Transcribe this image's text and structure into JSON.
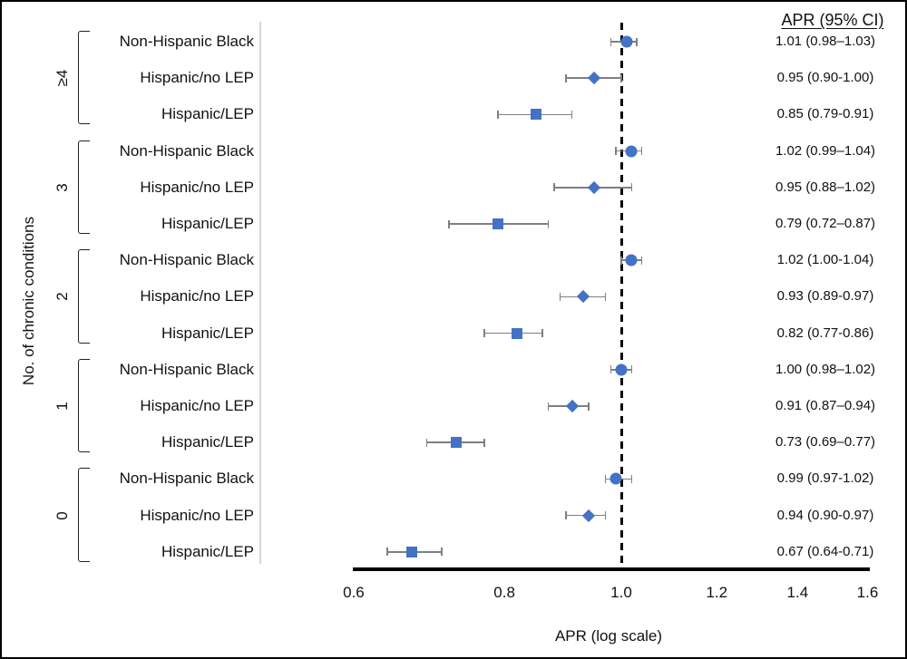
{
  "chart_data": {
    "type": "forest",
    "x_scale": "log",
    "xlabel": "APR (log scale)",
    "ylabel": "No. of chronic conditions",
    "value_column_header": "APR (95% CI)",
    "x_tick_labels": [
      "0.6",
      "0.8",
      "1.0",
      "1.2",
      "1.4",
      "1.6"
    ],
    "x_tick_values": [
      0.6,
      0.8,
      1.0,
      1.2,
      1.4,
      1.6
    ],
    "xlim": [
      0.6,
      1.6
    ],
    "reference_line": 1.0,
    "grid": false,
    "colors": {
      "marker": "#4472C4",
      "error_bar": "#7F7F7F",
      "separator_line": "#D6D6D6",
      "reference_line": "#000000"
    },
    "marker_legend": {
      "Non-Hispanic Black": "circle",
      "Hispanic/no LEP": "diamond",
      "Hispanic/LEP": "square"
    },
    "groups": [
      {
        "label": "≥4",
        "rows": [
          {
            "label": "Non-Hispanic Black",
            "marker": "circle",
            "apr": 1.01,
            "ci_low": 0.98,
            "ci_high": 1.03,
            "text": "1.01 (0.98–1.03)"
          },
          {
            "label": "Hispanic/no LEP",
            "marker": "diamond",
            "apr": 0.95,
            "ci_low": 0.9,
            "ci_high": 1.0,
            "text": "0.95 (0.90-1.00)"
          },
          {
            "label": "Hispanic/LEP",
            "marker": "square",
            "apr": 0.85,
            "ci_low": 0.79,
            "ci_high": 0.91,
            "text": "0.85 (0.79-0.91)"
          }
        ]
      },
      {
        "label": "3",
        "rows": [
          {
            "label": "Non-Hispanic Black",
            "marker": "circle",
            "apr": 1.02,
            "ci_low": 0.99,
            "ci_high": 1.04,
            "text": "1.02 (0.99–1.04)"
          },
          {
            "label": "Hispanic/no LEP",
            "marker": "diamond",
            "apr": 0.95,
            "ci_low": 0.88,
            "ci_high": 1.02,
            "text": "0.95 (0.88–1.02)"
          },
          {
            "label": "Hispanic/LEP",
            "marker": "square",
            "apr": 0.79,
            "ci_low": 0.72,
            "ci_high": 0.87,
            "text": "0.79 (0.72–0.87)"
          }
        ]
      },
      {
        "label": "2",
        "rows": [
          {
            "label": "Non-Hispanic Black",
            "marker": "circle",
            "apr": 1.02,
            "ci_low": 1.0,
            "ci_high": 1.04,
            "text": "1.02 (1.00-1.04)"
          },
          {
            "label": "Hispanic/no LEP",
            "marker": "diamond",
            "apr": 0.93,
            "ci_low": 0.89,
            "ci_high": 0.97,
            "text": "0.93 (0.89-0.97)"
          },
          {
            "label": "Hispanic/LEP",
            "marker": "square",
            "apr": 0.82,
            "ci_low": 0.77,
            "ci_high": 0.86,
            "text": "0.82 (0.77-0.86)"
          }
        ]
      },
      {
        "label": "1",
        "rows": [
          {
            "label": "Non-Hispanic Black",
            "marker": "circle",
            "apr": 1.0,
            "ci_low": 0.98,
            "ci_high": 1.02,
            "text": "1.00 (0.98–1.02)"
          },
          {
            "label": "Hispanic/no LEP",
            "marker": "diamond",
            "apr": 0.91,
            "ci_low": 0.87,
            "ci_high": 0.94,
            "text": "0.91 (0.87–0.94)"
          },
          {
            "label": "Hispanic/LEP",
            "marker": "square",
            "apr": 0.73,
            "ci_low": 0.69,
            "ci_high": 0.77,
            "text": "0.73 (0.69–0.77)"
          }
        ]
      },
      {
        "label": "0",
        "rows": [
          {
            "label": "Non-Hispanic Black",
            "marker": "circle",
            "apr": 0.99,
            "ci_low": 0.97,
            "ci_high": 1.02,
            "text": "0.99 (0.97-1.02)"
          },
          {
            "label": "Hispanic/no LEP",
            "marker": "diamond",
            "apr": 0.94,
            "ci_low": 0.9,
            "ci_high": 0.97,
            "text": "0.94 (0.90-0.97)"
          },
          {
            "label": "Hispanic/LEP",
            "marker": "square",
            "apr": 0.67,
            "ci_low": 0.64,
            "ci_high": 0.71,
            "text": "0.67 (0.64-0.71)"
          }
        ]
      }
    ]
  }
}
